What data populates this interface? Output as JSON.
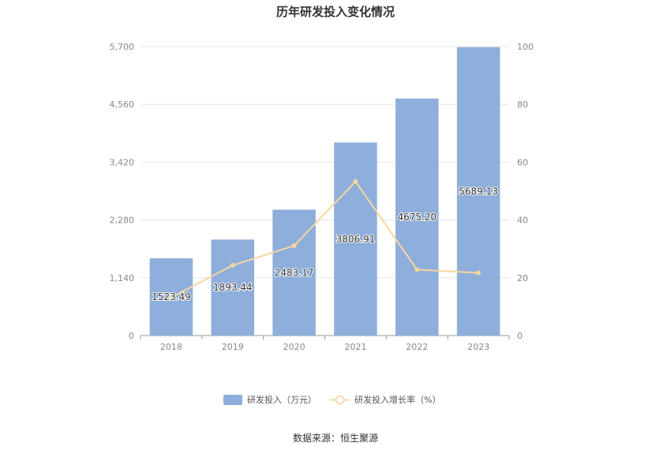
{
  "chart_data": {
    "type": "bar",
    "title": "历年研发投入变化情况",
    "categories": [
      "2018",
      "2019",
      "2020",
      "2021",
      "2022",
      "2023"
    ],
    "series": [
      {
        "name": "研发投入（万元）",
        "type": "bar",
        "axis": "left",
        "color": "#8eaedb",
        "values": [
          1523.49,
          1893.44,
          2483.17,
          3806.91,
          4675.2,
          5689.13
        ],
        "labels": [
          "1523.49",
          "1893.44",
          "2483.17",
          "3806.91",
          "4675.20",
          "5689.13"
        ]
      },
      {
        "name": "研发投入增长率（%）",
        "type": "line",
        "axis": "right",
        "color": "#f5d79e",
        "values": [
          13.2,
          24.3,
          31.1,
          53.3,
          22.8,
          21.7
        ]
      }
    ],
    "y_left": {
      "ticks": [
        "0",
        "1,140",
        "2,280",
        "3,420",
        "4,560",
        "5,700"
      ],
      "ylim": [
        0,
        5700
      ]
    },
    "y_right": {
      "ticks": [
        "0",
        "20",
        "40",
        "60",
        "80",
        "100"
      ],
      "ylim": [
        0,
        100
      ]
    },
    "grid": true,
    "legend_position": "bottom"
  },
  "source": "数据来源：恒生聚源"
}
